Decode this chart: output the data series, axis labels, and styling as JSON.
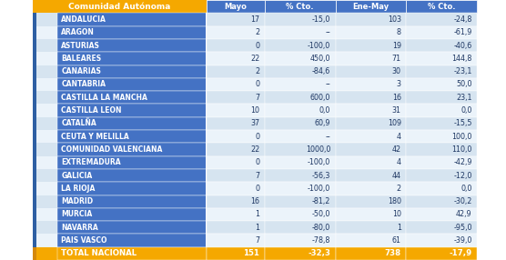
{
  "header": [
    "Comunidad Autónoma",
    "Mayo",
    "% Cto.",
    "Ene-May",
    "% Cto."
  ],
  "rows": [
    [
      "ANDALUCIA",
      "17",
      "-15,0",
      "103",
      "-24,8"
    ],
    [
      "ARAGON",
      "2",
      "--",
      "8",
      "-61,9"
    ],
    [
      "ASTURIAS",
      "0",
      "-100,0",
      "19",
      "-40,6"
    ],
    [
      "BALEARES",
      "22",
      "450,0",
      "71",
      "144,8"
    ],
    [
      "CANARIAS",
      "2",
      "-84,6",
      "30",
      "-23,1"
    ],
    [
      "CANTABRIA",
      "0",
      "--",
      "3",
      "50,0"
    ],
    [
      "CASTILLA LA MANCHA",
      "7",
      "600,0",
      "16",
      "23,1"
    ],
    [
      "CASTILLA LEON",
      "10",
      "0,0",
      "31",
      "0,0"
    ],
    [
      "CATALÑA",
      "37",
      "60,9",
      "109",
      "-15,5"
    ],
    [
      "CEUTA Y MELILLA",
      "0",
      "--",
      "4",
      "100,0"
    ],
    [
      "COMUNIDAD VALENCIANA",
      "22",
      "1000,0",
      "42",
      "110,0"
    ],
    [
      "EXTREMADURA",
      "0",
      "-100,0",
      "4",
      "-42,9"
    ],
    [
      "GALICIA",
      "7",
      "-56,3",
      "44",
      "-12,0"
    ],
    [
      "LA RIOJA",
      "0",
      "-100,0",
      "2",
      "0,0"
    ],
    [
      "MADRID",
      "16",
      "-81,2",
      "180",
      "-30,2"
    ],
    [
      "MURCIA",
      "1",
      "-50,0",
      "10",
      "42,9"
    ],
    [
      "NAVARRA",
      "1",
      "-80,0",
      "1",
      "-95,0"
    ],
    [
      "PAIS VASCO",
      "7",
      "-78,8",
      "61",
      "-39,0"
    ]
  ],
  "total": [
    "TOTAL NACIONAL",
    "151",
    "-32,3",
    "738",
    "-17,9"
  ],
  "header_bg": "#F5A800",
  "header_text": "#FFFFFF",
  "col_header_bg": "#4472C4",
  "col_header_text": "#FFFFFF",
  "row_light": "#D6E4F0",
  "row_lighter": "#EBF3FA",
  "total_bg": "#F5A800",
  "total_text": "#FFFFFF",
  "name_col_bg": "#4472C4",
  "name_col_text": "#FFFFFF",
  "data_text": "#1F3864",
  "stripe_bg": "#2E5FA3",
  "left_bg": "#FFFFFF",
  "fig_w": 5.56,
  "fig_h": 2.86,
  "dpi": 100
}
